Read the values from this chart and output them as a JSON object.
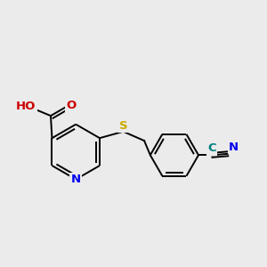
{
  "background_color": "#ebebeb",
  "bond_color": "#000000",
  "atom_colors": {
    "N": "#0000ee",
    "O": "#cc0000",
    "S": "#ccaa00",
    "C_teal": "#008080",
    "HO": "#cc0000"
  },
  "lw": 1.4,
  "fontsize": 9.5
}
